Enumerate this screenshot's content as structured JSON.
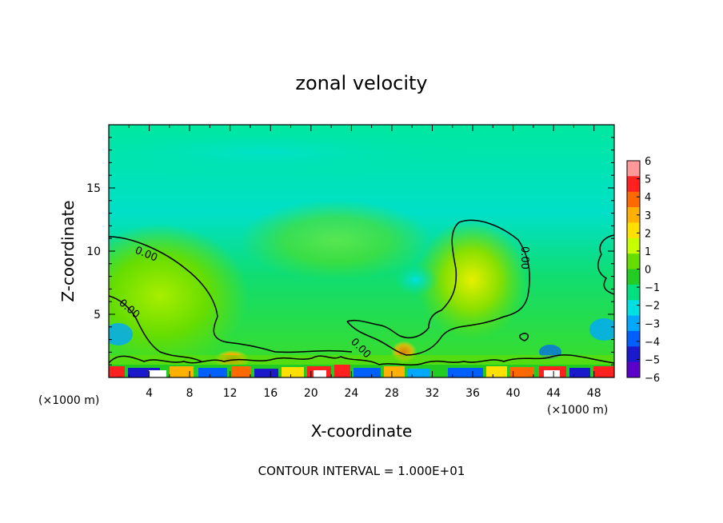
{
  "chart_data": {
    "type": "heatmap",
    "title": "zonal velocity",
    "xlabel": "X-coordinate",
    "ylabel": "Z-coordinate",
    "x_unit_label": "(×1000 m)",
    "x_unit_label_right": "(×1000 m)",
    "xlim": [
      0,
      50
    ],
    "ylim": [
      0,
      20
    ],
    "x_ticks": [
      "4",
      "8",
      "12",
      "16",
      "20",
      "24",
      "28",
      "32",
      "36",
      "40",
      "44",
      "48"
    ],
    "y_ticks": [
      "5",
      "10",
      "15"
    ],
    "footnote": "CONTOUR INTERVAL = 1.000E+01",
    "contour_labels": [
      "0.00",
      "0.00",
      "0.00",
      "0.00"
    ],
    "colorbar": {
      "ticks": [
        "6",
        "5",
        "4",
        "3",
        "2",
        "1",
        "0",
        "−1",
        "−2",
        "−3",
        "−4",
        "−5",
        "−6"
      ],
      "range": [
        -6,
        6
      ],
      "colors": [
        "#ff9999",
        "#ff2020",
        "#ff6a00",
        "#ffb000",
        "#ffe000",
        "#c8ff00",
        "#66dd00",
        "#22cc22",
        "#00e080",
        "#00e0e0",
        "#00a8ff",
        "#0060ff",
        "#1a1acc",
        "#5a00c8"
      ]
    },
    "field_description_points": [
      {
        "x": 4,
        "z": 7,
        "value": 0.6
      },
      {
        "x": 12,
        "z": 1.5,
        "value": 2.8
      },
      {
        "x": 35,
        "z": 5.5,
        "value": 1.8
      },
      {
        "x": 30,
        "z": 7.5,
        "value": -1.6
      },
      {
        "x": 20,
        "z": 18,
        "value": -1.0
      },
      {
        "x": 48,
        "z": 3.5,
        "value": -2.8
      }
    ]
  }
}
